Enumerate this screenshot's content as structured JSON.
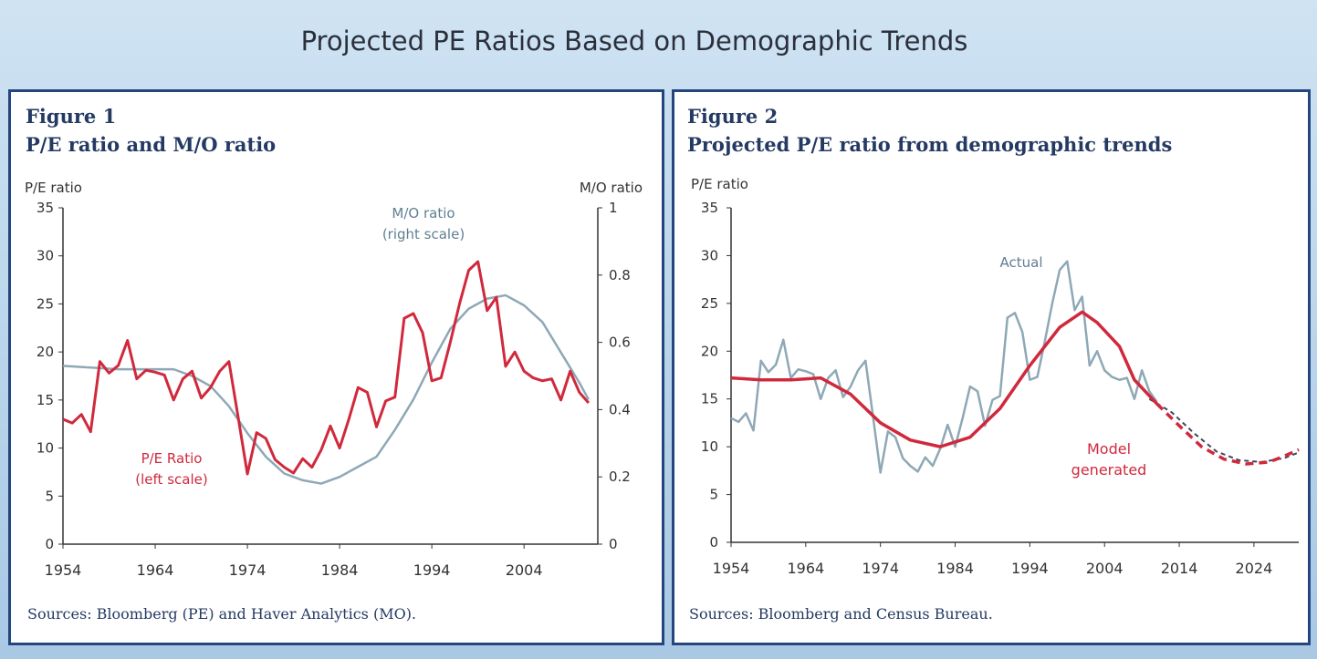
{
  "page_title": "Projected PE Ratios Based on Demographic Trends",
  "figures": [
    {
      "number": "Figure 1",
      "subtitle": "P/E ratio and M/O ratio",
      "source": "Sources: Bloomberg (PE) and Haver Analytics (MO)."
    },
    {
      "number": "Figure 2",
      "subtitle": "Projected P/E ratio from demographic trends",
      "source": "Sources: Bloomberg and Census Bureau."
    }
  ],
  "colors": {
    "pe": "#d0293c",
    "mo": "#8ea8b6",
    "actual": "#8ea8b6",
    "model": "#d0293c",
    "projection_alt": "#39485c",
    "axis": "#333333",
    "frame": "#24467e"
  },
  "chart_data": [
    {
      "type": "line",
      "title": "P/E ratio and M/O ratio",
      "left_axis_label": "P/E ratio",
      "right_axis_label": "M/O ratio",
      "xlim": [
        1954,
        2012
      ],
      "x_ticks": [
        1954,
        1964,
        1974,
        1984,
        1994,
        2004
      ],
      "x_tick_labels": [
        "1954",
        "1964",
        "1974",
        "1984",
        "1994",
        "2004"
      ],
      "ylim_left": [
        0,
        35
      ],
      "y_ticks_left": [
        0,
        5,
        10,
        15,
        20,
        25,
        30,
        35
      ],
      "y_tick_labels_left": [
        "0",
        "5",
        "10",
        "15",
        "20",
        "25",
        "30",
        "35"
      ],
      "ylim_right": [
        0,
        1
      ],
      "y_ticks_right": [
        0,
        0.2,
        0.4,
        0.6,
        0.8,
        1
      ],
      "y_tick_labels_right": [
        "0",
        "0.2",
        "0.4",
        "0.6",
        "0.8",
        "1"
      ],
      "grid": false,
      "series": [
        {
          "name": "P/E Ratio (left scale)",
          "label_lines": [
            "P/E Ratio",
            "(left scale)"
          ],
          "axis": "left",
          "x": [
            1954,
            1955,
            1956,
            1957,
            1958,
            1959,
            1960,
            1961,
            1962,
            1963,
            1964,
            1965,
            1966,
            1967,
            1968,
            1969,
            1970,
            1971,
            1972,
            1973,
            1974,
            1975,
            1976,
            1977,
            1978,
            1979,
            1980,
            1981,
            1982,
            1983,
            1984,
            1985,
            1986,
            1987,
            1988,
            1989,
            1990,
            1991,
            1992,
            1993,
            1994,
            1995,
            1996,
            1997,
            1998,
            1999,
            2000,
            2001,
            2002,
            2003,
            2004,
            2005,
            2006,
            2007,
            2008,
            2009,
            2010,
            2011
          ],
          "values": [
            13,
            12.6,
            13.5,
            11.7,
            19,
            17.8,
            18.6,
            21.2,
            17.2,
            18.1,
            17.9,
            17.6,
            15,
            17.2,
            18,
            15.2,
            16.3,
            18,
            19,
            13.2,
            7.3,
            11.6,
            11,
            8.8,
            8,
            7.4,
            8.9,
            8,
            9.8,
            12.3,
            10,
            13,
            16.3,
            15.8,
            12.2,
            14.9,
            15.3,
            23.5,
            24,
            22,
            17,
            17.3,
            21,
            25,
            28.5,
            29.4,
            24.3,
            25.7,
            18.5,
            20,
            18,
            17.3,
            17,
            17.2,
            15,
            18,
            15.8,
            14.7
          ]
        },
        {
          "name": "M/O ratio (right scale)",
          "label_lines": [
            "M/O ratio",
            "(right scale)"
          ],
          "axis": "right",
          "x": [
            1954,
            1957,
            1960,
            1963,
            1966,
            1968,
            1970,
            1972,
            1974,
            1976,
            1978,
            1980,
            1982,
            1984,
            1986,
            1988,
            1990,
            1992,
            1994,
            1996,
            1998,
            2000,
            2002,
            2004,
            2006,
            2008,
            2010,
            2011
          ],
          "values": [
            0.53,
            0.525,
            0.52,
            0.52,
            0.52,
            0.5,
            0.47,
            0.41,
            0.33,
            0.26,
            0.21,
            0.19,
            0.18,
            0.2,
            0.23,
            0.26,
            0.34,
            0.43,
            0.54,
            0.64,
            0.7,
            0.73,
            0.74,
            0.71,
            0.66,
            0.57,
            0.48,
            0.43
          ]
        }
      ]
    },
    {
      "type": "line",
      "title": "Projected P/E ratio from demographic trends",
      "ylabel": "P/E ratio",
      "xlim": [
        1954,
        2030
      ],
      "x_ticks": [
        1954,
        1964,
        1974,
        1984,
        1994,
        2004,
        2014,
        2024
      ],
      "x_tick_labels": [
        "1954",
        "1964",
        "1974",
        "1984",
        "1994",
        "2004",
        "2014",
        "2024"
      ],
      "ylim": [
        0,
        35
      ],
      "y_ticks": [
        0,
        5,
        10,
        15,
        20,
        25,
        30,
        35
      ],
      "y_tick_labels": [
        "0",
        "5",
        "10",
        "15",
        "20",
        "25",
        "30",
        "35"
      ],
      "grid": false,
      "series": [
        {
          "name": "Actual",
          "label_lines": [
            "Actual"
          ],
          "style": "solid",
          "x": [
            1954,
            1955,
            1956,
            1957,
            1958,
            1959,
            1960,
            1961,
            1962,
            1963,
            1964,
            1965,
            1966,
            1967,
            1968,
            1969,
            1970,
            1971,
            1972,
            1973,
            1974,
            1975,
            1976,
            1977,
            1978,
            1979,
            1980,
            1981,
            1982,
            1983,
            1984,
            1985,
            1986,
            1987,
            1988,
            1989,
            1990,
            1991,
            1992,
            1993,
            1994,
            1995,
            1996,
            1997,
            1998,
            1999,
            2000,
            2001,
            2002,
            2003,
            2004,
            2005,
            2006,
            2007,
            2008,
            2009,
            2010,
            2011
          ],
          "values": [
            13,
            12.6,
            13.5,
            11.7,
            19,
            17.8,
            18.6,
            21.2,
            17.2,
            18.1,
            17.9,
            17.6,
            15,
            17.2,
            18,
            15.2,
            16.3,
            18,
            19,
            13.2,
            7.3,
            11.6,
            11,
            8.8,
            8,
            7.4,
            8.9,
            8,
            9.8,
            12.3,
            10,
            13,
            16.3,
            15.8,
            12.2,
            14.9,
            15.3,
            23.5,
            24,
            22,
            17,
            17.3,
            21,
            25,
            28.5,
            29.4,
            24.3,
            25.7,
            18.5,
            20,
            18,
            17.3,
            17,
            17.2,
            15,
            18,
            15.8,
            14.7
          ]
        },
        {
          "name": "Model generated",
          "label_lines": [
            "Model",
            "generated"
          ],
          "style": "solid",
          "x": [
            1954,
            1958,
            1962,
            1966,
            1970,
            1974,
            1978,
            1982,
            1986,
            1990,
            1994,
            1998,
            2001,
            2003,
            2006,
            2008,
            2011
          ],
          "values": [
            17.2,
            17.0,
            17.0,
            17.2,
            15.5,
            12.5,
            10.7,
            10,
            11,
            14,
            18.5,
            22.5,
            24.1,
            23,
            20.5,
            17,
            14.5
          ]
        },
        {
          "name": "",
          "style": "dashed",
          "x": [
            2011,
            2014,
            2017,
            2020,
            2023,
            2026,
            2028,
            2030
          ],
          "values": [
            14.5,
            12.2,
            10,
            8.7,
            8.2,
            8.4,
            9,
            9.7
          ]
        },
        {
          "name": "",
          "style": "dashed",
          "x": [
            2010,
            2013,
            2016,
            2019,
            2022,
            2025,
            2028,
            2030
          ],
          "values": [
            15,
            13.6,
            11.4,
            9.5,
            8.6,
            8.4,
            8.8,
            9.4
          ]
        }
      ]
    }
  ]
}
